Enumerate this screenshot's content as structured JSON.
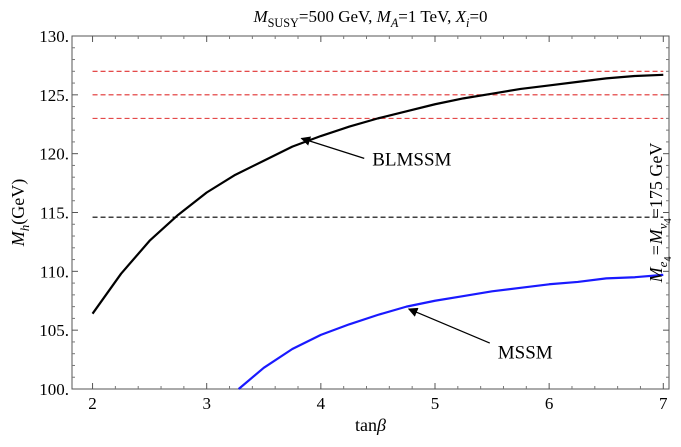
{
  "chart_data": {
    "type": "line",
    "title": {
      "parts": [
        {
          "text": "M",
          "italic": true
        },
        {
          "text": "SUSY",
          "sub": true,
          "smallcaps": true
        },
        {
          "text": "=500 GeV, "
        },
        {
          "text": "M",
          "italic": true
        },
        {
          "text": "A",
          "sub": true,
          "italic": true
        },
        {
          "text": "=1 TeV, "
        },
        {
          "text": "X",
          "italic": true
        },
        {
          "text": "i",
          "sub": true,
          "italic": true
        },
        {
          "text": "=0"
        }
      ]
    },
    "xlabel": {
      "parts": [
        {
          "text": "tan"
        },
        {
          "text": "β",
          "italic": true
        }
      ]
    },
    "ylabel": {
      "parts": [
        {
          "text": "M",
          "italic": true
        },
        {
          "text": "h",
          "sub": true,
          "italic": true
        },
        {
          "text": "(GeV)"
        }
      ]
    },
    "right_label": {
      "parts": [
        {
          "text": "M",
          "italic": true
        },
        {
          "text": "e",
          "sub": true,
          "italic": true
        },
        {
          "text": "4",
          "sub2": true
        },
        {
          "text": "=",
          "italic": true
        },
        {
          "text": "M",
          "italic": true
        },
        {
          "text": "ν",
          "sub": true,
          "italic": true
        },
        {
          "text": "4",
          "sub2": true
        },
        {
          "text": "=175 GeV"
        }
      ]
    },
    "xlim": [
      1.82,
      7.05
    ],
    "ylim": [
      100,
      130
    ],
    "x_ticks": [
      2,
      3,
      4,
      5,
      6,
      7
    ],
    "x_tick_labels": [
      "2",
      "3",
      "4",
      "5",
      "6",
      "7"
    ],
    "y_ticks": [
      100,
      105,
      110,
      115,
      120,
      125,
      130
    ],
    "y_tick_labels": [
      "100.",
      "105.",
      "110.",
      "115.",
      "120.",
      "125.",
      "130."
    ],
    "grid": false,
    "series": [
      {
        "name": "BLMSSM",
        "color": "#000000",
        "points": [
          [
            2.0,
            106.4
          ],
          [
            2.25,
            109.8
          ],
          [
            2.5,
            112.6
          ],
          [
            2.75,
            114.8
          ],
          [
            3.0,
            116.7
          ],
          [
            3.25,
            118.2
          ],
          [
            3.5,
            119.4
          ],
          [
            3.75,
            120.6
          ],
          [
            4.0,
            121.5
          ],
          [
            4.25,
            122.3
          ],
          [
            4.5,
            123.0
          ],
          [
            4.75,
            123.6
          ],
          [
            5.0,
            124.2
          ],
          [
            5.25,
            124.7
          ],
          [
            5.5,
            125.1
          ],
          [
            5.75,
            125.5
          ],
          [
            6.0,
            125.8
          ],
          [
            6.25,
            126.1
          ],
          [
            6.5,
            126.4
          ],
          [
            6.75,
            126.6
          ],
          [
            7.0,
            126.7
          ]
        ]
      },
      {
        "name": "MSSM",
        "color": "#1a1aff",
        "points": [
          [
            3.28,
            100.0
          ],
          [
            3.5,
            101.8
          ],
          [
            3.75,
            103.4
          ],
          [
            4.0,
            104.6
          ],
          [
            4.25,
            105.5
          ],
          [
            4.5,
            106.3
          ],
          [
            4.75,
            107.0
          ],
          [
            5.0,
            107.5
          ],
          [
            5.25,
            107.9
          ],
          [
            5.5,
            108.3
          ],
          [
            5.75,
            108.6
          ],
          [
            6.0,
            108.9
          ],
          [
            6.25,
            109.1
          ],
          [
            6.5,
            109.4
          ],
          [
            6.75,
            109.5
          ],
          [
            7.0,
            109.7
          ]
        ]
      }
    ],
    "reference_lines": [
      {
        "y": 127.0,
        "color": "#e03030",
        "style": "dashed"
      },
      {
        "y": 125.0,
        "color": "#e03030",
        "style": "dashed"
      },
      {
        "y": 123.0,
        "color": "#e03030",
        "style": "dashed"
      },
      {
        "y": 114.6,
        "color": "#000000",
        "style": "dashed"
      }
    ],
    "annotations": [
      {
        "text": "BLMSSM",
        "text_at": [
          4.45,
          119.6
        ],
        "arrow_from": [
          4.38,
          119.6
        ],
        "arrow_to": [
          3.83,
          121.3
        ]
      },
      {
        "text": "MSSM",
        "text_at": [
          5.55,
          103.2
        ],
        "arrow_from": [
          5.48,
          103.9
        ],
        "arrow_to": [
          4.77,
          106.8
        ]
      }
    ]
  }
}
